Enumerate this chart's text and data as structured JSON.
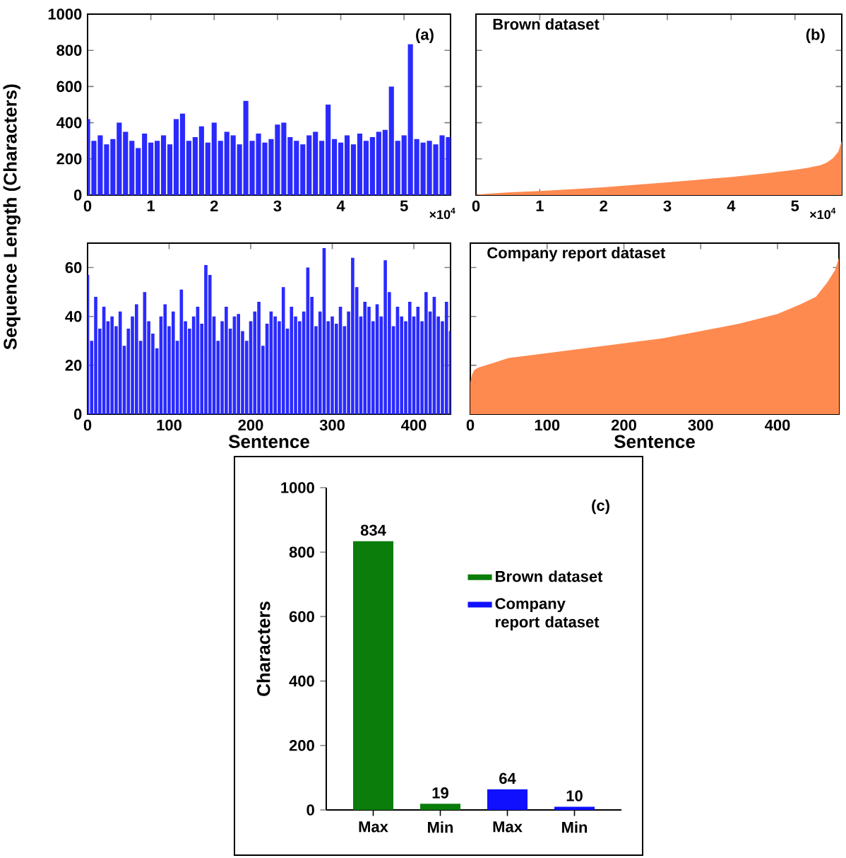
{
  "chart_data": [
    {
      "type": "bar",
      "ylabel": "Sequence Length  (Characters)",
      "annotations": [
        "(a)",
        "×10$^{4}$"
      ],
      "color": "#2a2aff",
      "x": [
        0,
        0.1,
        0.2,
        0.3,
        0.4,
        0.5,
        0.6,
        0.7,
        0.8,
        0.9,
        1.0,
        1.1,
        1.2,
        1.3,
        1.4,
        1.5,
        1.6,
        1.7,
        1.8,
        1.9,
        2.0,
        2.1,
        2.2,
        2.3,
        2.4,
        2.5,
        2.6,
        2.7,
        2.8,
        2.9,
        3.0,
        3.1,
        3.2,
        3.3,
        3.4,
        3.5,
        3.6,
        3.7,
        3.8,
        3.9,
        4.0,
        4.1,
        4.2,
        4.3,
        4.4,
        4.5,
        4.6,
        4.7,
        4.8,
        4.9,
        5.0,
        5.1,
        5.2,
        5.3,
        5.4,
        5.5,
        5.6,
        5.7
      ],
      "values": [
        420,
        300,
        330,
        280,
        310,
        400,
        350,
        300,
        260,
        340,
        290,
        300,
        330,
        280,
        420,
        450,
        300,
        320,
        380,
        290,
        400,
        300,
        350,
        330,
        280,
        520,
        300,
        340,
        290,
        310,
        390,
        400,
        320,
        300,
        280,
        330,
        350,
        300,
        500,
        310,
        290,
        330,
        280,
        340,
        300,
        320,
        350,
        360,
        600,
        300,
        330,
        834,
        310,
        290,
        300,
        280,
        330,
        320
      ],
      "xlim": [
        0,
        5.734
      ],
      "ylim": [
        0,
        1000
      ],
      "xticks": [
        0,
        1,
        2,
        3,
        4,
        5
      ],
      "yticks": [
        0,
        200,
        400,
        600,
        800,
        1000
      ]
    },
    {
      "type": "area",
      "title": "Brown dataset",
      "annotations": [
        "(b)",
        "×10$^{4}$"
      ],
      "color": "#ff8a50",
      "x": [
        0,
        0.2,
        0.5,
        1.0,
        1.5,
        2.0,
        2.5,
        3.0,
        3.5,
        4.0,
        4.5,
        5.0,
        5.2,
        5.4,
        5.5,
        5.6,
        5.68,
        5.734
      ],
      "values": [
        2,
        8,
        15,
        22,
        32,
        43,
        57,
        70,
        85,
        100,
        118,
        140,
        150,
        165,
        180,
        205,
        240,
        300
      ],
      "xlim": [
        0,
        5.734
      ],
      "ylim": [
        0,
        1000
      ],
      "xticks": [
        0,
        1,
        2,
        3,
        4,
        5
      ],
      "yticks": [
        0,
        200,
        400,
        600,
        800,
        1000
      ],
      "tick_labels": "x"
    },
    {
      "type": "bar",
      "xlabel": "Sentence",
      "color": "#2a2aff",
      "x": [
        0,
        5,
        10,
        15,
        20,
        25,
        30,
        35,
        40,
        45,
        50,
        55,
        60,
        65,
        70,
        75,
        80,
        85,
        90,
        95,
        100,
        105,
        110,
        115,
        120,
        125,
        130,
        135,
        140,
        145,
        150,
        155,
        160,
        165,
        170,
        175,
        180,
        185,
        190,
        195,
        200,
        205,
        210,
        215,
        220,
        225,
        230,
        235,
        240,
        245,
        250,
        255,
        260,
        265,
        270,
        275,
        280,
        285,
        290,
        295,
        300,
        305,
        310,
        315,
        320,
        325,
        330,
        335,
        340,
        345,
        350,
        355,
        360,
        365,
        370,
        375,
        380,
        385,
        390,
        395,
        400,
        405,
        410,
        415,
        420,
        425,
        430,
        435,
        440,
        445
      ],
      "values": [
        57,
        30,
        48,
        35,
        44,
        38,
        40,
        36,
        42,
        28,
        35,
        40,
        45,
        30,
        50,
        38,
        33,
        27,
        40,
        45,
        36,
        42,
        30,
        51,
        38,
        35,
        40,
        44,
        37,
        61,
        57,
        40,
        30,
        38,
        44,
        35,
        40,
        41,
        34,
        30,
        38,
        42,
        46,
        28,
        37,
        42,
        40,
        38,
        52,
        35,
        44,
        40,
        38,
        42,
        60,
        48,
        36,
        42,
        68,
        38,
        40,
        37,
        44,
        36,
        42,
        64,
        52,
        40,
        46,
        44,
        38,
        45,
        40,
        63,
        50,
        36,
        44,
        40,
        38,
        46,
        40,
        44,
        38,
        50,
        42,
        48,
        40,
        38,
        46,
        34
      ],
      "xlim": [
        0,
        445
      ],
      "ylim": [
        0,
        70
      ],
      "xticks": [
        0,
        100,
        200,
        300,
        400
      ],
      "yticks": [
        0,
        20,
        40,
        60
      ]
    },
    {
      "type": "area",
      "title": "Company report dataset",
      "xlabel": "Sentence",
      "color": "#ff8a50",
      "x": [
        0,
        2,
        5,
        10,
        20,
        30,
        50,
        75,
        100,
        150,
        200,
        250,
        300,
        350,
        400,
        430,
        450,
        465,
        475,
        480
      ],
      "values": [
        13,
        16,
        18,
        19,
        20,
        21,
        23,
        24,
        25,
        27,
        29,
        31,
        34,
        37,
        41,
        45,
        48,
        54,
        59,
        64
      ],
      "xlim": [
        0,
        480
      ],
      "ylim": [
        0,
        70
      ],
      "xticks": [
        0,
        100,
        200,
        300,
        400
      ],
      "yticks": [
        0,
        20,
        40,
        60
      ],
      "tick_labels": "x"
    },
    {
      "type": "bar",
      "ylabel": "Characters",
      "annotations": [
        "(c)"
      ],
      "categories": [
        "Max",
        "Min",
        "Max",
        "Min"
      ],
      "series": [
        {
          "name": "Brown dataset",
          "color": "#0a7d0a",
          "values": [
            834,
            19,
            null,
            null
          ]
        },
        {
          "name": "Company report dataset",
          "color": "#1010ff",
          "values": [
            null,
            null,
            64,
            10
          ]
        }
      ],
      "ylim": [
        0,
        1000
      ],
      "yticks": [
        0,
        200,
        400,
        600,
        800,
        1000
      ],
      "data_labels": true,
      "legend": "right"
    }
  ]
}
